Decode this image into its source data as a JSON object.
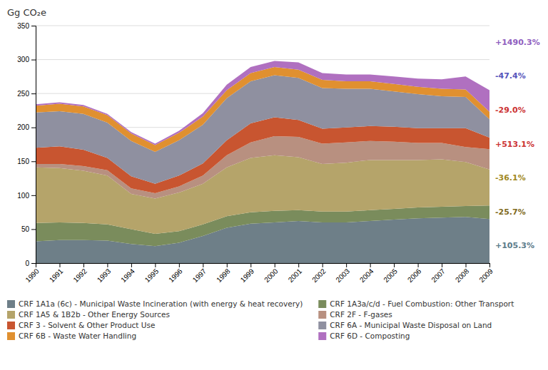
{
  "chart_data": {
    "type": "area",
    "stacked": true,
    "title": "Gg CO₂e",
    "x": [
      1990,
      1991,
      1992,
      1993,
      1994,
      1995,
      1996,
      1997,
      1998,
      1999,
      2000,
      2001,
      2002,
      2003,
      2004,
      2005,
      2006,
      2007,
      2008,
      2009
    ],
    "xlim": [
      1990,
      2009
    ],
    "xticks": [
      1990,
      1991,
      1992,
      1993,
      1994,
      1995,
      1996,
      1997,
      1998,
      1999,
      2000,
      2001,
      2002,
      2003,
      2004,
      2005,
      2006,
      2007,
      2008,
      2009
    ],
    "ylim": [
      0,
      350
    ],
    "yticks": [
      0,
      50,
      100,
      150,
      200,
      250,
      300,
      350
    ],
    "grid": true,
    "legend": "bottom",
    "series": [
      {
        "name": "CRF 1A1a (6c) - Municipal Waste Incineration (with energy & heat recovery)",
        "color": "#6e7f88",
        "values": [
          32,
          34,
          34,
          33,
          28,
          25,
          30,
          40,
          52,
          58,
          60,
          62,
          60,
          60,
          62,
          64,
          66,
          67,
          68,
          65
        ]
      },
      {
        "name": "CRF 1A3a/c/d - Fuel Combustion: Other Transport",
        "color": "#7a8c5c",
        "values": [
          27,
          26,
          25,
          24,
          22,
          18,
          17,
          17,
          17,
          17,
          17,
          16,
          16,
          16,
          16,
          16,
          16,
          16,
          16,
          20
        ]
      },
      {
        "name": "CRF 1A5 & 1B2b - Other Energy Sources",
        "color": "#b5a46a",
        "values": [
          82,
          80,
          77,
          72,
          52,
          52,
          57,
          60,
          72,
          80,
          82,
          78,
          70,
          72,
          74,
          72,
          70,
          70,
          65,
          53
        ]
      },
      {
        "name": "CRF 2F - F-gases",
        "color": "#b89080",
        "values": [
          5,
          6,
          7,
          8,
          8,
          8,
          9,
          12,
          18,
          23,
          28,
          30,
          30,
          30,
          28,
          27,
          25,
          24,
          22,
          30
        ]
      },
      {
        "name": "CRF 3 - Solvent & Other Product Use",
        "color": "#c85530",
        "values": [
          24,
          26,
          24,
          18,
          18,
          14,
          16,
          18,
          22,
          28,
          28,
          25,
          22,
          22,
          22,
          22,
          22,
          22,
          28,
          17
        ]
      },
      {
        "name": "CRF 6A - Municipal Waste Disposal on Land",
        "color": "#8f90a0",
        "values": [
          52,
          52,
          53,
          52,
          52,
          47,
          52,
          57,
          62,
          62,
          62,
          62,
          60,
          57,
          55,
          52,
          50,
          47,
          46,
          27
        ]
      },
      {
        "name": "CRF 6B - Waste Water Handling",
        "color": "#e09030",
        "values": [
          10,
          11,
          11,
          11,
          11,
          10,
          11,
          12,
          12,
          12,
          12,
          12,
          12,
          11,
          11,
          11,
          11,
          11,
          11,
          11
        ]
      },
      {
        "name": "CRF 6D - Composting",
        "color": "#b070c0",
        "values": [
          2,
          2,
          2,
          2,
          2,
          2,
          3,
          5,
          8,
          9,
          9,
          11,
          10,
          10,
          10,
          11,
          12,
          14,
          19,
          32
        ]
      }
    ],
    "annotations": [
      {
        "text": "+1490.3%",
        "color": "#9060c0"
      },
      {
        "text": "-47.4%",
        "color": "#5555bb"
      },
      {
        "text": "-29.0%",
        "color": "#cc3333"
      },
      {
        "text": "+513.1%",
        "color": "#cc3333"
      },
      {
        "text": "-36.1%",
        "color": "#a08820"
      },
      {
        "text": "-25.7%",
        "color": "#806a20"
      },
      {
        "text": "+105.3%",
        "color": "#5b7b8a"
      }
    ]
  }
}
